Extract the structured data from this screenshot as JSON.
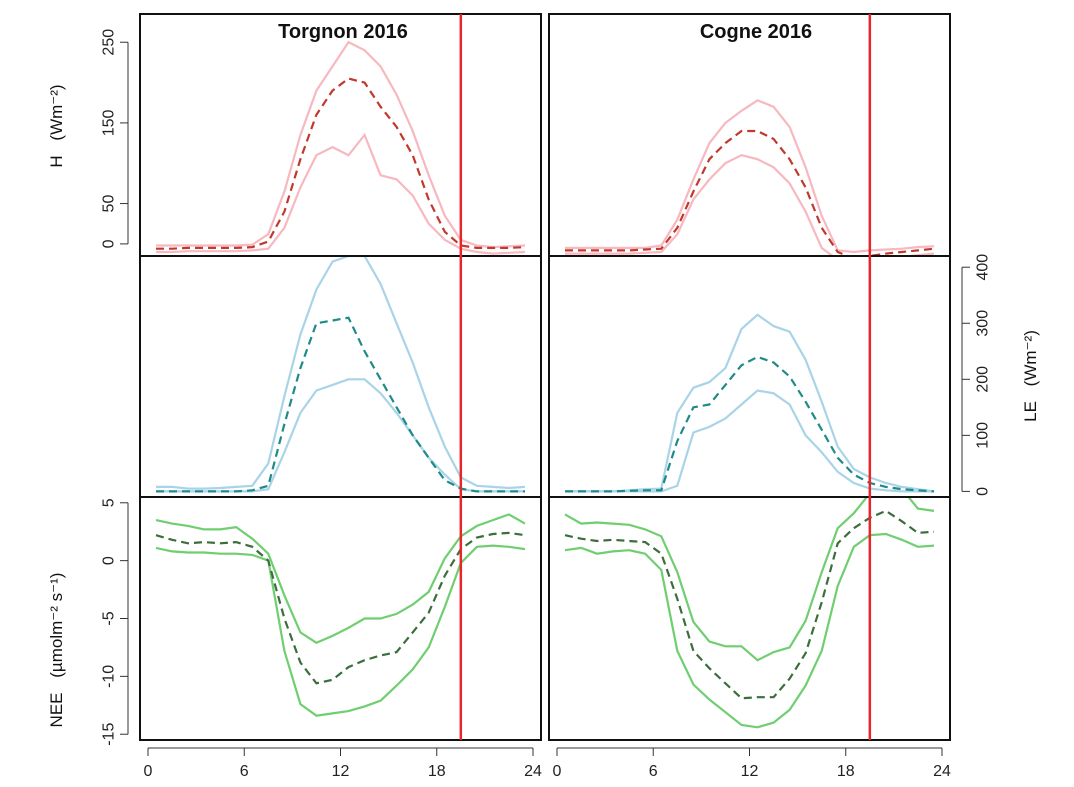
{
  "chart_data": {
    "type": "line",
    "panel_titles": [
      "Torgnon 2016",
      "Cogne 2016"
    ],
    "x_ticks": [
      0,
      6,
      12,
      18,
      24
    ],
    "xlim": [
      0,
      24
    ],
    "sunset_marker_hour": 19.5,
    "marker_color": "#e8262a",
    "rows": [
      {
        "variable": "H",
        "ylabel": "H (Wm⁻²)",
        "ylabel_main": "H",
        "ylabel_unit": "(Wm⁻²)",
        "ylabel_side": "left",
        "ylim": [
          -15,
          285
        ],
        "y_ticks": [
          0,
          50,
          150,
          250
        ],
        "colors": {
          "band": "#f7b8c0",
          "mean": "#c0392b"
        }
      },
      {
        "variable": "LE",
        "ylabel": "LE (Wm⁻²)",
        "ylabel_main": "LE",
        "ylabel_unit": "(Wm⁻²)",
        "ylabel_side": "right",
        "ylim": [
          -10,
          420
        ],
        "y_ticks": [
          0,
          100,
          200,
          300,
          400
        ],
        "colors": {
          "band": "#a9d4e8",
          "mean": "#1f8a8a"
        }
      },
      {
        "variable": "NEE",
        "ylabel": "NEE (µmolm⁻² s⁻¹)",
        "ylabel_main": "NEE",
        "ylabel_unit": "(µmolm⁻² s⁻¹)",
        "ylabel_side": "left",
        "ylim": [
          -15.5,
          5.5
        ],
        "y_ticks": [
          5,
          0,
          -5,
          -10,
          -15
        ],
        "colors": {
          "band": "#6fce6f",
          "mean": "#3b6e3b"
        }
      }
    ],
    "series": {
      "torgnon": {
        "H": {
          "x": [
            0.5,
            1.5,
            2.5,
            3.5,
            4.5,
            5.5,
            6.5,
            7.5,
            8.5,
            9.5,
            10.5,
            11.5,
            12.5,
            13.5,
            14.5,
            15.5,
            16.5,
            17.5,
            18.5,
            19.5,
            20.5,
            21.5,
            22.5,
            23.5
          ],
          "upper": [
            -2,
            -2,
            -2,
            -2,
            -2,
            -2,
            -1,
            12,
            65,
            135,
            190,
            220,
            250,
            240,
            220,
            185,
            140,
            85,
            35,
            5,
            -2,
            -4,
            -3,
            -2
          ],
          "mean": [
            -6,
            -6,
            -5,
            -5,
            -5,
            -5,
            -4,
            3,
            40,
            105,
            160,
            190,
            205,
            200,
            170,
            145,
            110,
            55,
            15,
            -2,
            -5,
            -5,
            -5,
            -4
          ],
          "lower": [
            -10,
            -10,
            -9,
            -9,
            -9,
            -9,
            -8,
            -6,
            20,
            70,
            110,
            120,
            110,
            135,
            85,
            80,
            60,
            25,
            5,
            -6,
            -10,
            -12,
            -11,
            -10
          ]
        },
        "LE": {
          "x": [
            0.5,
            1.5,
            2.5,
            3.5,
            4.5,
            5.5,
            6.5,
            7.5,
            8.5,
            9.5,
            10.5,
            11.5,
            12.5,
            13.5,
            14.5,
            15.5,
            16.5,
            17.5,
            18.5,
            19.5,
            20.5,
            21.5,
            22.5,
            23.5
          ],
          "upper": [
            8,
            8,
            5,
            5,
            6,
            8,
            10,
            50,
            170,
            280,
            360,
            410,
            420,
            420,
            370,
            300,
            230,
            150,
            80,
            25,
            10,
            8,
            6,
            8
          ],
          "mean": [
            0,
            0,
            0,
            0,
            0,
            0,
            2,
            10,
            120,
            220,
            300,
            305,
            310,
            250,
            200,
            150,
            100,
            60,
            20,
            5,
            0,
            0,
            0,
            0
          ],
          "lower": [
            0,
            0,
            0,
            0,
            0,
            0,
            0,
            4,
            70,
            140,
            180,
            190,
            200,
            200,
            175,
            140,
            100,
            60,
            30,
            4,
            0,
            0,
            0,
            0
          ]
        },
        "NEE": {
          "x": [
            0.5,
            1.5,
            2.5,
            3.5,
            4.5,
            5.5,
            6.5,
            7.5,
            8.5,
            9.5,
            10.5,
            11.5,
            12.5,
            13.5,
            14.5,
            15.5,
            16.5,
            17.5,
            18.5,
            19.5,
            20.5,
            21.5,
            22.5,
            23.5
          ],
          "upper": [
            3.5,
            3.2,
            3.0,
            2.7,
            2.7,
            2.9,
            1.9,
            0.6,
            -3.0,
            -6.2,
            -7.1,
            -6.5,
            -5.8,
            -5.0,
            -5.0,
            -4.6,
            -3.8,
            -2.7,
            0.2,
            2.1,
            3.0,
            3.5,
            4.0,
            3.2
          ],
          "mean": [
            2.2,
            1.8,
            1.5,
            1.6,
            1.5,
            1.6,
            1.2,
            0.0,
            -5.0,
            -8.8,
            -10.6,
            -10.3,
            -9.2,
            -8.6,
            -8.2,
            -7.9,
            -6.2,
            -4.5,
            -1.3,
            1.0,
            2.0,
            2.3,
            2.4,
            2.2
          ],
          "lower": [
            1.1,
            0.8,
            0.7,
            0.7,
            0.6,
            0.6,
            0.5,
            0.0,
            -7.8,
            -12.4,
            -13.4,
            -13.2,
            -13.0,
            -12.6,
            -12.1,
            -10.8,
            -9.4,
            -7.5,
            -4.0,
            -0.2,
            1.2,
            1.3,
            1.2,
            1.0
          ]
        }
      },
      "cogne": {
        "H": {
          "x": [
            0.5,
            1.5,
            2.5,
            3.5,
            4.5,
            5.5,
            6.5,
            7.5,
            8.5,
            9.5,
            10.5,
            11.5,
            12.5,
            13.5,
            14.5,
            15.5,
            16.5,
            17.5,
            18.5,
            19.5,
            20.5,
            21.5,
            22.5,
            23.5
          ],
          "upper": [
            -5,
            -5,
            -5,
            -5,
            -5,
            -5,
            -2,
            30,
            80,
            125,
            150,
            165,
            178,
            170,
            145,
            95,
            35,
            -8,
            -10,
            -8,
            -7,
            -6,
            -4,
            -3
          ],
          "mean": [
            -8,
            -8,
            -8,
            -8,
            -8,
            -7,
            -6,
            20,
            65,
            105,
            125,
            140,
            140,
            130,
            105,
            70,
            20,
            -10,
            -18,
            -15,
            -12,
            -10,
            -8,
            -6
          ],
          "lower": [
            -12,
            -12,
            -12,
            -12,
            -12,
            -11,
            -10,
            12,
            55,
            80,
            100,
            110,
            105,
            95,
            75,
            40,
            -5,
            -20,
            -22,
            -20,
            -18,
            -16,
            -14,
            -12
          ]
        },
        "LE": {
          "x": [
            0.5,
            1.5,
            2.5,
            3.5,
            4.5,
            5.5,
            6.5,
            7.5,
            8.5,
            9.5,
            10.5,
            11.5,
            12.5,
            13.5,
            14.5,
            15.5,
            16.5,
            17.5,
            18.5,
            19.5,
            20.5,
            21.5,
            22.5,
            23.5
          ],
          "upper": [
            0,
            0,
            0,
            0,
            2,
            4,
            5,
            140,
            185,
            195,
            220,
            290,
            315,
            295,
            285,
            235,
            160,
            80,
            40,
            25,
            15,
            8,
            4,
            0
          ],
          "mean": [
            0,
            0,
            0,
            0,
            1,
            2,
            2,
            90,
            150,
            155,
            190,
            225,
            240,
            230,
            205,
            160,
            110,
            60,
            30,
            15,
            8,
            4,
            2,
            0
          ],
          "lower": [
            0,
            0,
            0,
            0,
            0,
            0,
            0,
            10,
            105,
            115,
            130,
            155,
            180,
            175,
            155,
            100,
            70,
            35,
            15,
            5,
            2,
            0,
            0,
            0
          ]
        },
        "NEE": {
          "x": [
            0.5,
            1.5,
            2.5,
            3.5,
            4.5,
            5.5,
            6.5,
            7.5,
            8.5,
            9.5,
            10.5,
            11.5,
            12.5,
            13.5,
            14.5,
            15.5,
            16.5,
            17.5,
            18.5,
            19.5,
            20.5,
            21.5,
            22.5,
            23.5
          ],
          "upper": [
            4.0,
            3.2,
            3.3,
            3.2,
            3.1,
            2.7,
            2.1,
            -1.0,
            -5.3,
            -7.0,
            -7.4,
            -7.4,
            -8.6,
            -7.9,
            -7.5,
            -5.2,
            -1.0,
            2.8,
            4.1,
            5.8,
            5.9,
            6.2,
            4.5,
            4.3
          ],
          "mean": [
            2.2,
            1.9,
            1.7,
            1.8,
            1.7,
            1.6,
            0.6,
            -3.3,
            -7.8,
            -9.3,
            -10.6,
            -11.9,
            -11.8,
            -11.8,
            -10.2,
            -8.0,
            -3.6,
            1.5,
            2.8,
            3.7,
            4.3,
            3.4,
            2.4,
            2.5
          ],
          "lower": [
            0.9,
            1.1,
            0.6,
            0.8,
            0.9,
            0.6,
            -0.8,
            -7.8,
            -10.7,
            -12.0,
            -13.1,
            -14.2,
            -14.4,
            -14.0,
            -12.9,
            -10.8,
            -7.8,
            -2.2,
            1.2,
            2.2,
            2.3,
            1.8,
            1.2,
            1.3
          ]
        }
      }
    }
  }
}
